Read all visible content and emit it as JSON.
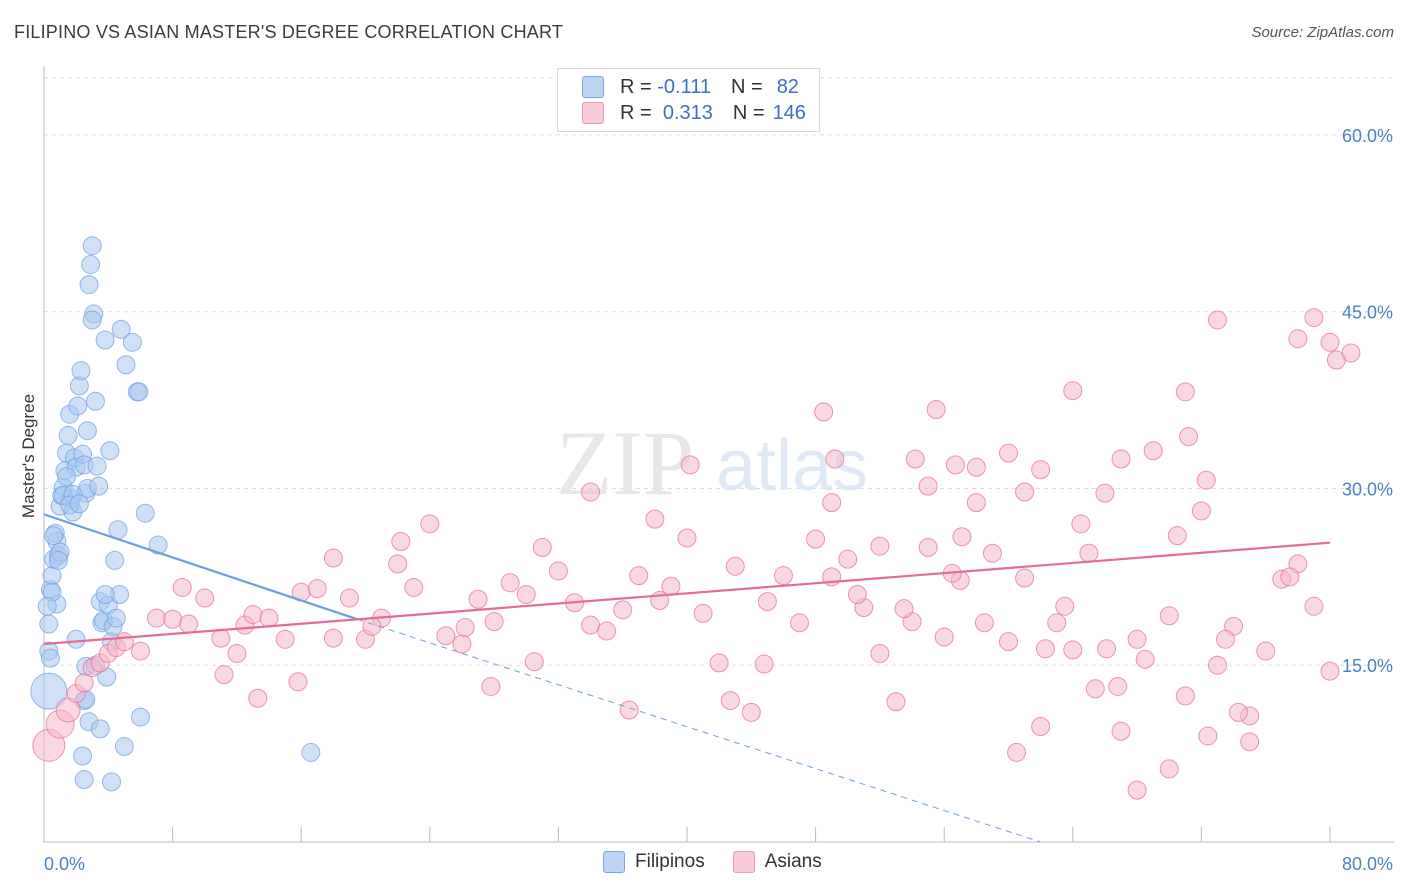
{
  "header": {
    "title": "FILIPINO VS ASIAN MASTER'S DEGREE CORRELATION CHART",
    "source": "Source: ZipAtlas.com"
  },
  "legend": {
    "r_label": "R =",
    "n_label": "N =",
    "rows": [
      {
        "name": "Filipinos",
        "r": "-0.111",
        "n": "82",
        "color": "#a9c8f0"
      },
      {
        "name": "Asians",
        "r": "0.313",
        "n": "146",
        "color": "#f6b8cb"
      }
    ]
  },
  "watermark": {
    "zip": "ZIP",
    "atlas": "atlas"
  },
  "chart_data": {
    "type": "scatter",
    "title": "FILIPINO VS ASIAN MASTER'S DEGREE CORRELATION CHART",
    "xlabel": "",
    "ylabel": "Master's Degree",
    "xlim": [
      0,
      80
    ],
    "ylim": [
      0,
      65
    ],
    "x_tick_labels": [
      "0.0%",
      "80.0%"
    ],
    "y_ticks": [
      15,
      30,
      45,
      60
    ],
    "y_tick_labels": [
      "15.0%",
      "30.0%",
      "45.0%",
      "60.0%"
    ],
    "grid": true,
    "series": [
      {
        "name": "Filipinos",
        "color": "#6a9fe0",
        "fill": "#a9c8f0",
        "trend": {
          "x": [
            0,
            19.5
          ],
          "y": [
            27.8,
            18.9
          ],
          "dashed_to_x": 62,
          "dashed_to_y": 0
        },
        "points": [
          [
            0.3,
            12.8
          ],
          [
            0.3,
            16.2
          ],
          [
            0.3,
            18.5
          ],
          [
            0.4,
            21.4
          ],
          [
            0.5,
            22.6
          ],
          [
            0.6,
            24.0
          ],
          [
            0.7,
            26.2
          ],
          [
            0.8,
            25.5
          ],
          [
            0.9,
            24.3
          ],
          [
            1.0,
            28.5
          ],
          [
            1.1,
            29.4
          ],
          [
            1.2,
            30.1
          ],
          [
            1.3,
            31.5
          ],
          [
            1.4,
            33.0
          ],
          [
            1.5,
            34.5
          ],
          [
            1.6,
            36.3
          ],
          [
            1.7,
            29.1
          ],
          [
            1.8,
            28.0
          ],
          [
            1.9,
            32.6
          ],
          [
            2.0,
            31.8
          ],
          [
            2.1,
            37.0
          ],
          [
            2.2,
            38.7
          ],
          [
            2.3,
            40.0
          ],
          [
            2.4,
            32.9
          ],
          [
            2.5,
            32.0
          ],
          [
            2.6,
            29.6
          ],
          [
            2.7,
            30.0
          ],
          [
            2.8,
            47.3
          ],
          [
            2.9,
            49.0
          ],
          [
            3.0,
            50.6
          ],
          [
            3.1,
            44.8
          ],
          [
            3.2,
            37.4
          ],
          [
            3.3,
            31.9
          ],
          [
            3.4,
            30.2
          ],
          [
            3.5,
            20.4
          ],
          [
            3.6,
            18.6
          ],
          [
            3.7,
            18.8
          ],
          [
            3.8,
            42.6
          ],
          [
            3.9,
            14.0
          ],
          [
            4.0,
            20.1
          ],
          [
            4.1,
            33.2
          ],
          [
            4.2,
            17.0
          ],
          [
            4.3,
            18.3
          ],
          [
            4.4,
            23.9
          ],
          [
            4.5,
            19.0
          ],
          [
            4.6,
            26.5
          ],
          [
            4.7,
            21.0
          ],
          [
            4.8,
            43.5
          ],
          [
            5.1,
            40.5
          ],
          [
            5.5,
            42.4
          ],
          [
            5.8,
            38.2
          ],
          [
            5.9,
            38.2
          ],
          [
            6.3,
            27.9
          ],
          [
            7.1,
            25.2
          ],
          [
            0.4,
            15.6
          ],
          [
            0.6,
            26.0
          ],
          [
            0.8,
            20.2
          ],
          [
            1.0,
            24.6
          ],
          [
            1.2,
            29.4
          ],
          [
            2.0,
            17.2
          ],
          [
            2.6,
            14.9
          ],
          [
            2.5,
            12.0
          ],
          [
            2.8,
            10.2
          ],
          [
            3.5,
            9.6
          ],
          [
            2.4,
            7.3
          ],
          [
            2.5,
            5.3
          ],
          [
            4.2,
            5.1
          ],
          [
            5.0,
            8.1
          ],
          [
            6.0,
            10.6
          ],
          [
            16.6,
            7.6
          ],
          [
            3.2,
            15.0
          ],
          [
            2.6,
            12.1
          ],
          [
            0.5,
            21.2
          ],
          [
            0.9,
            23.9
          ],
          [
            1.4,
            31.0
          ],
          [
            1.8,
            29.5
          ],
          [
            2.7,
            34.9
          ],
          [
            3.0,
            44.3
          ],
          [
            0.2,
            20.0
          ],
          [
            1.6,
            28.6
          ],
          [
            2.2,
            28.7
          ],
          [
            3.8,
            21.0
          ]
        ]
      },
      {
        "name": "Asians",
        "color": "#e56b97",
        "fill": "#f6b8cb",
        "trend": {
          "x": [
            0,
            80
          ],
          "y": [
            16.8,
            25.4
          ]
        },
        "points": [
          [
            0.3,
            8.2
          ],
          [
            1.0,
            10.0
          ],
          [
            1.5,
            11.2
          ],
          [
            2.0,
            12.6
          ],
          [
            2.5,
            13.5
          ],
          [
            3.0,
            14.8
          ],
          [
            3.5,
            15.2
          ],
          [
            4.0,
            16.0
          ],
          [
            4.5,
            16.5
          ],
          [
            5.0,
            17.0
          ],
          [
            6.0,
            16.2
          ],
          [
            7.0,
            19.0
          ],
          [
            8.0,
            18.9
          ],
          [
            9.0,
            18.5
          ],
          [
            10.0,
            20.7
          ],
          [
            11.0,
            17.3
          ],
          [
            12.0,
            16.0
          ],
          [
            12.5,
            18.4
          ],
          [
            13.0,
            19.3
          ],
          [
            14.0,
            19.0
          ],
          [
            15.0,
            17.2
          ],
          [
            16.0,
            21.2
          ],
          [
            17.0,
            21.5
          ],
          [
            18.0,
            24.1
          ],
          [
            19.0,
            20.7
          ],
          [
            20.0,
            17.2
          ],
          [
            21.0,
            19.0
          ],
          [
            22.0,
            23.6
          ],
          [
            23.0,
            21.6
          ],
          [
            24.0,
            27.0
          ],
          [
            25.0,
            17.5
          ],
          [
            26.0,
            16.8
          ],
          [
            27.0,
            20.6
          ],
          [
            28.0,
            18.7
          ],
          [
            29.0,
            22.0
          ],
          [
            30.0,
            21.0
          ],
          [
            31.0,
            25.0
          ],
          [
            32.0,
            23.0
          ],
          [
            33.0,
            20.3
          ],
          [
            34.0,
            18.4
          ],
          [
            35.0,
            17.9
          ],
          [
            36.0,
            19.7
          ],
          [
            37.0,
            22.6
          ],
          [
            38.0,
            27.4
          ],
          [
            39.0,
            21.7
          ],
          [
            40.0,
            25.8
          ],
          [
            41.0,
            19.4
          ],
          [
            42.0,
            15.2
          ],
          [
            43.0,
            23.4
          ],
          [
            44.0,
            11.0
          ],
          [
            45.0,
            20.4
          ],
          [
            46.0,
            22.6
          ],
          [
            47.0,
            18.6
          ],
          [
            48.0,
            25.7
          ],
          [
            49.0,
            22.5
          ],
          [
            50.0,
            24.0
          ],
          [
            51.0,
            19.9
          ],
          [
            52.0,
            25.1
          ],
          [
            53.0,
            11.9
          ],
          [
            54.0,
            18.7
          ],
          [
            55.0,
            30.2
          ],
          [
            56.0,
            17.4
          ],
          [
            57.0,
            22.2
          ],
          [
            58.0,
            28.8
          ],
          [
            59.0,
            24.5
          ],
          [
            60.0,
            17.0
          ],
          [
            61.0,
            22.4
          ],
          [
            62.0,
            31.6
          ],
          [
            63.0,
            18.6
          ],
          [
            64.0,
            16.3
          ],
          [
            65.0,
            24.5
          ],
          [
            66.0,
            29.6
          ],
          [
            67.0,
            32.5
          ],
          [
            68.0,
            17.2
          ],
          [
            69.0,
            33.2
          ],
          [
            70.0,
            19.2
          ],
          [
            71.0,
            12.4
          ],
          [
            72.0,
            28.1
          ],
          [
            73.0,
            15.0
          ],
          [
            74.0,
            18.3
          ],
          [
            75.0,
            10.7
          ],
          [
            76.0,
            16.2
          ],
          [
            77.0,
            22.3
          ],
          [
            78.0,
            23.6
          ],
          [
            79.0,
            20.0
          ],
          [
            80.0,
            14.5
          ],
          [
            48.5,
            36.5
          ],
          [
            49.2,
            32.5
          ],
          [
            49.0,
            28.8
          ],
          [
            54.2,
            32.5
          ],
          [
            55.5,
            36.7
          ],
          [
            56.7,
            32.0
          ],
          [
            57.1,
            25.9
          ],
          [
            58.0,
            31.8
          ],
          [
            60.0,
            33.0
          ],
          [
            61.0,
            29.7
          ],
          [
            62.3,
            16.4
          ],
          [
            64.0,
            38.3
          ],
          [
            64.5,
            27.0
          ],
          [
            66.1,
            16.4
          ],
          [
            67.0,
            9.4
          ],
          [
            68.0,
            4.4
          ],
          [
            70.0,
            6.2
          ],
          [
            71.0,
            38.2
          ],
          [
            71.2,
            34.4
          ],
          [
            72.3,
            30.7
          ],
          [
            72.4,
            9.0
          ],
          [
            73.5,
            17.2
          ],
          [
            74.3,
            11.0
          ],
          [
            75.0,
            8.5
          ],
          [
            77.5,
            22.5
          ],
          [
            78.0,
            42.7
          ],
          [
            79.0,
            44.5
          ],
          [
            80.0,
            42.4
          ],
          [
            80.4,
            40.9
          ],
          [
            81.3,
            41.5
          ],
          [
            73.0,
            44.3
          ],
          [
            70.5,
            26.0
          ],
          [
            68.5,
            15.5
          ],
          [
            66.8,
            13.2
          ],
          [
            65.4,
            13.0
          ],
          [
            63.5,
            20.0
          ],
          [
            62.0,
            9.8
          ],
          [
            60.5,
            7.6
          ],
          [
            58.5,
            18.6
          ],
          [
            56.5,
            22.8
          ],
          [
            55.0,
            25.0
          ],
          [
            53.5,
            19.8
          ],
          [
            52.0,
            16.0
          ],
          [
            50.6,
            21.0
          ],
          [
            44.8,
            15.1
          ],
          [
            42.7,
            12.0
          ],
          [
            40.2,
            32.0
          ],
          [
            38.3,
            20.5
          ],
          [
            36.4,
            11.2
          ],
          [
            34.0,
            29.7
          ],
          [
            30.5,
            15.3
          ],
          [
            27.8,
            13.2
          ],
          [
            26.2,
            18.2
          ],
          [
            22.2,
            25.5
          ],
          [
            20.4,
            18.3
          ],
          [
            18.0,
            17.3
          ],
          [
            15.8,
            13.6
          ],
          [
            13.3,
            12.2
          ],
          [
            11.2,
            14.2
          ],
          [
            8.6,
            21.6
          ]
        ]
      }
    ]
  },
  "bottom_legend": [
    "Filipinos",
    "Asians"
  ]
}
